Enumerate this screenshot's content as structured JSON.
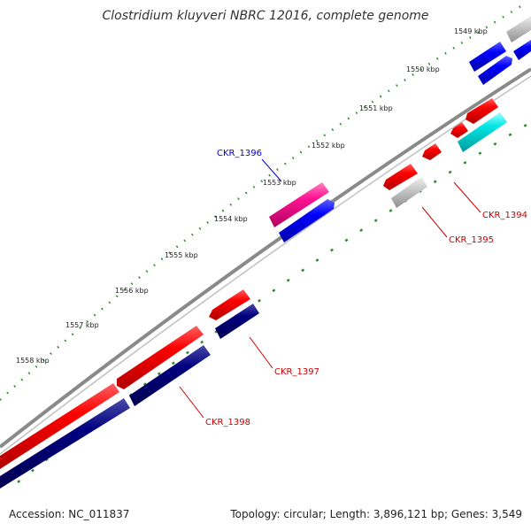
{
  "title": "Clostridium kluyveri NBRC 12016, complete genome",
  "footer": {
    "accession": "Accession: NC_011837",
    "summary": "Topology: circular; Length: 3,896,121 bp; Genes: 3,549"
  },
  "colors": {
    "backbone": "#8a8a8a",
    "tick": "#2e8b2e",
    "red": "#ff0000",
    "navy": "#000080",
    "blue": "#0000ff",
    "magenta": "#ff1493",
    "gray": "#c8c8c8",
    "cyan": "#00e5e5",
    "label_red": "#cc0000",
    "label_blue": "#0000cc"
  },
  "scale_labels": [
    "1549 kbp",
    "1550 kbp",
    "1551 kbp",
    "1552 kbp",
    "1553 kbp",
    "1554 kbp",
    "1555 kbp",
    "1556 kbp",
    "1557 kbp",
    "1558 kbp"
  ],
  "gene_labels": [
    {
      "text": "CKR_1394",
      "color": "label_red"
    },
    {
      "text": "CKR_1395",
      "color": "label_red"
    },
    {
      "text": "CKR_1396",
      "color": "label_blue"
    },
    {
      "text": "CKR_1397",
      "color": "label_red"
    },
    {
      "text": "CKR_1398",
      "color": "label_red"
    }
  ]
}
